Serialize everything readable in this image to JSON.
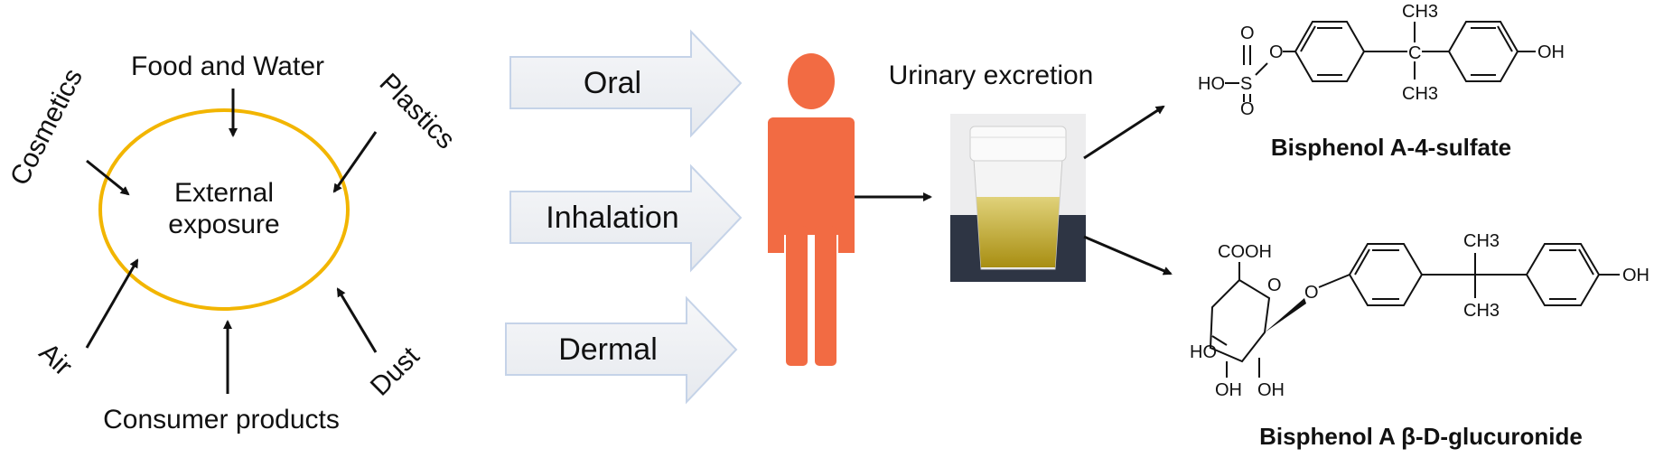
{
  "sources": {
    "food_water": "Food and Water",
    "cosmetics": "Cosmetics",
    "plastics": "Plastics",
    "air": "Air",
    "dust": "Dust",
    "consumer_products": "Consumer products"
  },
  "center": {
    "line1": "External",
    "line2": "exposure"
  },
  "routes": [
    "Oral",
    "Inhalation",
    "Dermal"
  ],
  "excretion_label": "Urinary excretion",
  "metabolites": {
    "sulfate": {
      "name": "Bisphenol A-4-sulfate",
      "atoms": {
        "ho": "HO",
        "s": "S",
        "o1": "O",
        "o2": "O",
        "o3": "O",
        "oh": "OH",
        "ch3_top": "CH3",
        "ch3_bottom": "CH3"
      }
    },
    "glucuronide": {
      "name": "Bisphenol A β-D-glucuronide",
      "atoms": {
        "cooh": "COOH",
        "o_ring": "O",
        "o_link": "O",
        "ho": "HO",
        "oh1": "OH",
        "oh2": "OH",
        "oh": "OH",
        "ch3_top": "CH3",
        "ch3_bottom": "CH3"
      }
    }
  },
  "colors": {
    "ellipse": "#F2B500",
    "person": "#F26B43",
    "route_arrow_fill": "#EEF0F3",
    "route_arrow_stroke": "#C5D3E8"
  }
}
